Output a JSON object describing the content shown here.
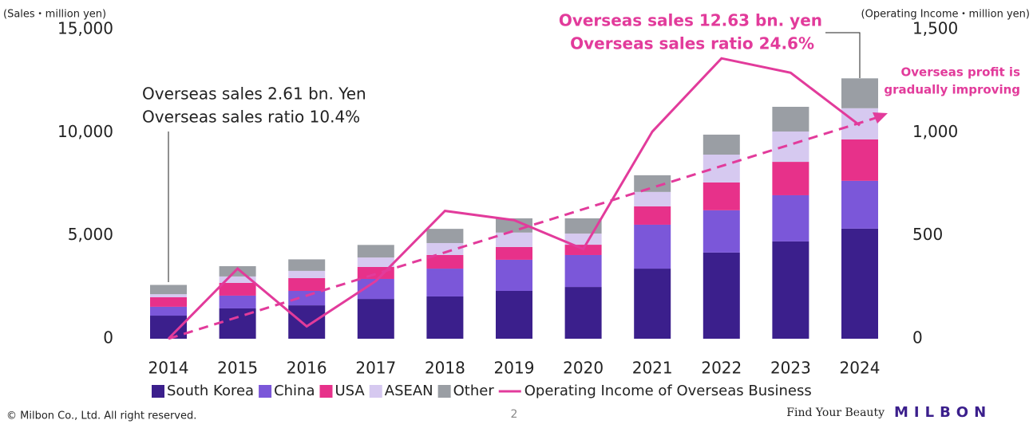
{
  "chart_data": {
    "type": "stacked-bar-line",
    "y_axis_label": "(Sales・million yen)",
    "y2_axis_label": "(Operating Income・million yen)",
    "annotations": [
      "Overseas sales 2.61 bn. Yen",
      "Overseas sales ratio 10.4%",
      "Overseas sales 12.63 bn. yen",
      "Overseas sales ratio 24.6%",
      "Overseas profit is",
      "gradually improving"
    ],
    "categories": [
      "2014",
      "2015",
      "2016",
      "2017",
      "2018",
      "2019",
      "2020",
      "2021",
      "2022",
      "2023",
      "2024"
    ],
    "series": [
      {
        "name": "South Korea",
        "color": "#3b1f8c",
        "values": [
          1120,
          1470,
          1620,
          1930,
          2050,
          2320,
          2510,
          3400,
          4180,
          4720,
          5340
        ]
      },
      {
        "name": "China",
        "color": "#7b57d9",
        "values": [
          430,
          620,
          700,
          970,
          1350,
          1510,
          1550,
          2130,
          2050,
          2240,
          2320
        ]
      },
      {
        "name": "USA",
        "color": "#e7318a",
        "values": [
          460,
          620,
          620,
          580,
          660,
          620,
          500,
          890,
          1350,
          1620,
          2010
        ]
      },
      {
        "name": "ASEAN",
        "color": "#d6c9f0",
        "values": [
          150,
          310,
          350,
          460,
          580,
          700,
          540,
          700,
          1350,
          1470,
          1510
        ]
      },
      {
        "name": "Other",
        "color": "#9a9ea4",
        "values": [
          450,
          500,
          560,
          610,
          690,
          690,
          740,
          810,
          970,
          1200,
          1450
        ]
      },
      {
        "name": "Operating Income of Overseas Business",
        "color": "#e23b9b",
        "axis": "y2",
        "values": [
          0,
          340,
          60,
          280,
          620,
          575,
          435,
          1005,
          1360,
          1290,
          1035
        ]
      }
    ],
    "ylim": [
      0,
      15000
    ],
    "yticks": [
      0,
      {
        "value": 5000,
        "label": "5,000"
      },
      {
        "value": 10000,
        "label": "10,000"
      },
      {
        "value": 15000,
        "label": "15,000"
      }
    ],
    "y2lim": [
      0,
      1500
    ],
    "y2ticks": [
      0,
      500,
      {
        "value": 1000,
        "label": "1,000"
      },
      {
        "value": 1500,
        "label": "1,500"
      }
    ],
    "footer": {
      "copyright": "© Milbon Co., Ltd. All right reserved.",
      "page": "2",
      "tagline": "Find Your Beauty",
      "logo": "MILBON"
    }
  }
}
